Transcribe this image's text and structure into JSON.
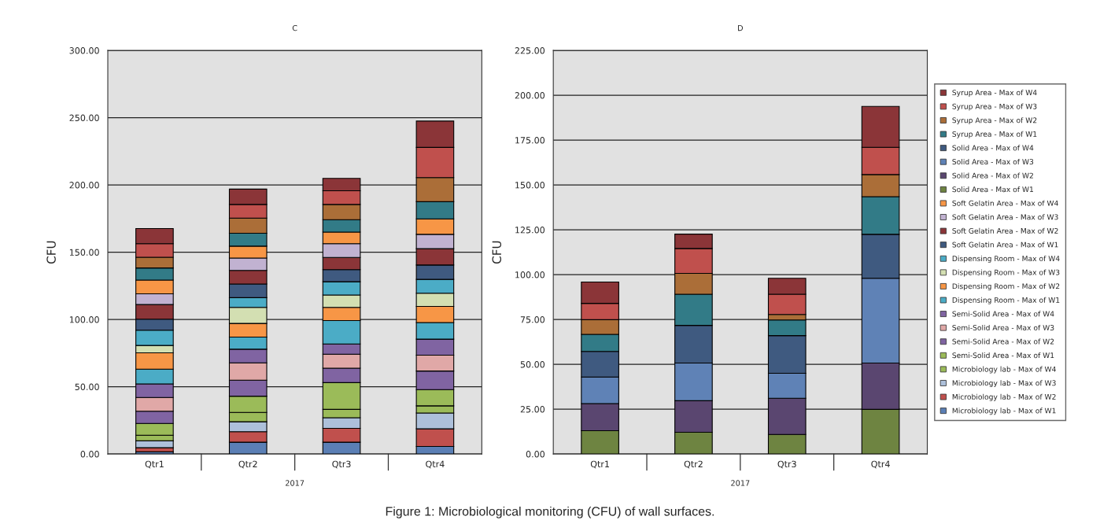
{
  "chart_data": [
    {
      "type": "bar",
      "title": "C",
      "ylabel": "CFU",
      "xlabel": "2017",
      "stacked": true,
      "grid": "y",
      "legend": false,
      "categories": [
        "Qtr1",
        "Qtr2",
        "Qtr3",
        "Qtr4"
      ],
      "ylim": [
        0,
        300
      ],
      "yticks": [
        {
          "value": 0,
          "label": "0.00"
        },
        {
          "value": 50,
          "label": "50.00"
        },
        {
          "value": 100,
          "label": "100.00"
        },
        {
          "value": 150,
          "label": "150.00"
        },
        {
          "value": 200,
          "label": "200.00"
        },
        {
          "value": 250,
          "label": "250.00"
        },
        {
          "value": 300,
          "label": "300.00"
        }
      ],
      "series": [
        {
          "color": "#5b7fb5",
          "values": [
            1.6,
            8.8,
            8.8,
            5.6
          ]
        },
        {
          "color": "#c0504d",
          "values": [
            3.1,
            7.8,
            10.3,
            13.1
          ]
        },
        {
          "color": "#adc0da",
          "values": [
            5.1,
            7.4,
            7.9,
            11.8
          ]
        },
        {
          "color": "#9bbb59",
          "values": [
            4.2,
            6.9,
            6.2,
            5.3
          ]
        },
        {
          "color": "#9bbb59",
          "values": [
            8.7,
            12.1,
            19.9,
            12.1
          ]
        },
        {
          "color": "#8064a2",
          "values": [
            9.1,
            11.9,
            10.7,
            13.8
          ]
        },
        {
          "color": "#e0a8a7",
          "values": [
            10.2,
            12.9,
            10.4,
            11.8
          ]
        },
        {
          "color": "#8064a2",
          "values": [
            10.1,
            10.1,
            7.6,
            11.9
          ]
        },
        {
          "color": "#4bacc6",
          "values": [
            11.0,
            9.0,
            17.4,
            12.3
          ]
        },
        {
          "color": "#f79646",
          "values": [
            12.1,
            10.2,
            9.8,
            12.0
          ]
        },
        {
          "color": "#d3dfb2",
          "values": [
            5.5,
            11.9,
            9.2,
            9.8
          ]
        },
        {
          "color": "#4bacc6",
          "values": [
            11.3,
            7.2,
            9.9,
            10.3
          ]
        },
        {
          "color": "#3f5a80",
          "values": [
            8.2,
            10.2,
            9.0,
            10.7
          ]
        },
        {
          "color": "#8b3538",
          "values": [
            10.9,
            10.1,
            9.0,
            12.1
          ]
        },
        {
          "color": "#c1b2d1",
          "values": [
            8.0,
            9.2,
            10.3,
            10.7
          ]
        },
        {
          "color": "#f79646",
          "values": [
            10.2,
            8.8,
            8.6,
            11.5
          ]
        },
        {
          "color": "#327b87",
          "values": [
            9.0,
            9.6,
            9.2,
            12.8
          ]
        },
        {
          "color": "#ab6e38",
          "values": [
            8.0,
            11.3,
            11.3,
            17.9
          ]
        },
        {
          "color": "#c0504d",
          "values": [
            10.1,
            10.1,
            10.2,
            22.4
          ]
        },
        {
          "color": "#8b3538",
          "values": [
            11.2,
            11.4,
            9.2,
            19.6
          ]
        }
      ]
    },
    {
      "type": "bar",
      "title": "D",
      "ylabel": "CFU",
      "xlabel": "2017",
      "stacked": true,
      "grid": "y",
      "legend": "right",
      "categories": [
        "Qtr1",
        "Qtr2",
        "Qtr3",
        "Qtr4"
      ],
      "ylim": [
        0,
        225
      ],
      "yticks": [
        {
          "value": 0,
          "label": "0.00"
        },
        {
          "value": 25,
          "label": "25.00"
        },
        {
          "value": 50,
          "label": "50.00"
        },
        {
          "value": 75,
          "label": "75.00"
        },
        {
          "value": 100,
          "label": "100.00"
        },
        {
          "value": 125,
          "label": "125.00"
        },
        {
          "value": 150,
          "label": "150.00"
        },
        {
          "value": 175,
          "label": "175.00"
        },
        {
          "value": 200,
          "label": "200.00"
        },
        {
          "value": 225,
          "label": "225.00"
        }
      ],
      "annotations": [
        "Figure 1: Microbiological monitoring (CFU) of wall surfaces."
      ],
      "series": [
        {
          "name": "Microbiology lab - Max of W1",
          "color": "#5b7fb5",
          "values": [
            null,
            null,
            null,
            null
          ]
        },
        {
          "name": "Microbiology lab - Max of W2",
          "color": "#c0504d",
          "values": [
            null,
            null,
            null,
            null
          ]
        },
        {
          "name": "Microbiology lab - Max of W3",
          "color": "#adc0da",
          "values": [
            null,
            null,
            null,
            null
          ]
        },
        {
          "name": "Microbiology lab - Max of W4",
          "color": "#9bbb59",
          "values": [
            null,
            null,
            null,
            null
          ]
        },
        {
          "name": "Semi-Solid Area - Max of W1",
          "color": "#9bbb59",
          "values": [
            null,
            null,
            null,
            null
          ]
        },
        {
          "name": "Semi-Solid Area - Max of W2",
          "color": "#8064a2",
          "values": [
            null,
            null,
            null,
            null
          ]
        },
        {
          "name": "Semi-Solid Area - Max of W3",
          "color": "#e0a8a7",
          "values": [
            null,
            null,
            null,
            null
          ]
        },
        {
          "name": "Semi-Solid Area - Max of W4",
          "color": "#8064a2",
          "values": [
            null,
            null,
            null,
            null
          ]
        },
        {
          "name": "Dispensing Room - Max of W1",
          "color": "#4bacc6",
          "values": [
            null,
            null,
            null,
            null
          ]
        },
        {
          "name": "Dispensing Room - Max of W2",
          "color": "#f79646",
          "values": [
            null,
            null,
            null,
            null
          ]
        },
        {
          "name": "Dispensing Room - Max of W3",
          "color": "#d3dfb2",
          "values": [
            null,
            null,
            null,
            null
          ]
        },
        {
          "name": "Dispensing Room - Max of W4",
          "color": "#4bacc6",
          "values": [
            null,
            null,
            null,
            null
          ]
        },
        {
          "name": "Soft Gelatin Area - Max of W1",
          "color": "#3f5a80",
          "values": [
            null,
            null,
            null,
            null
          ]
        },
        {
          "name": "Soft Gelatin Area - Max of W2",
          "color": "#8b3538",
          "values": [
            null,
            null,
            null,
            null
          ]
        },
        {
          "name": "Soft Gelatin Area - Max of W3",
          "color": "#c1b2d1",
          "values": [
            null,
            null,
            null,
            null
          ]
        },
        {
          "name": "Soft Gelatin Area - Max of W4",
          "color": "#f79646",
          "values": [
            null,
            null,
            null,
            null
          ]
        },
        {
          "name": "Solid Area - Max of W1",
          "color": "#6e8441",
          "values": [
            13.0,
            12.1,
            10.9,
            24.9
          ]
        },
        {
          "name": "Solid Area - Max of W2",
          "color": "#5a4670",
          "values": [
            15.1,
            17.6,
            20.2,
            25.8
          ]
        },
        {
          "name": "Solid Area - Max of W3",
          "color": "#5f82b6",
          "values": [
            14.8,
            21.0,
            13.9,
            47.3
          ]
        },
        {
          "name": "Solid Area - Max of W4",
          "color": "#3f5a80",
          "values": [
            14.3,
            21.0,
            21.0,
            24.5
          ]
        },
        {
          "name": "Syrup Area - Max of W1",
          "color": "#327b87",
          "values": [
            9.5,
            17.4,
            8.7,
            21.0
          ]
        },
        {
          "name": "Syrup Area - Max of W2",
          "color": "#ab6e38",
          "values": [
            8.2,
            11.6,
            3.1,
            12.3
          ]
        },
        {
          "name": "Syrup Area - Max of W3",
          "color": "#c0504d",
          "values": [
            9.1,
            13.9,
            11.3,
            15.2
          ]
        },
        {
          "name": "Syrup Area - Max of W4",
          "color": "#8b3538",
          "values": [
            11.9,
            8.0,
            8.9,
            22.8
          ]
        }
      ]
    }
  ]
}
